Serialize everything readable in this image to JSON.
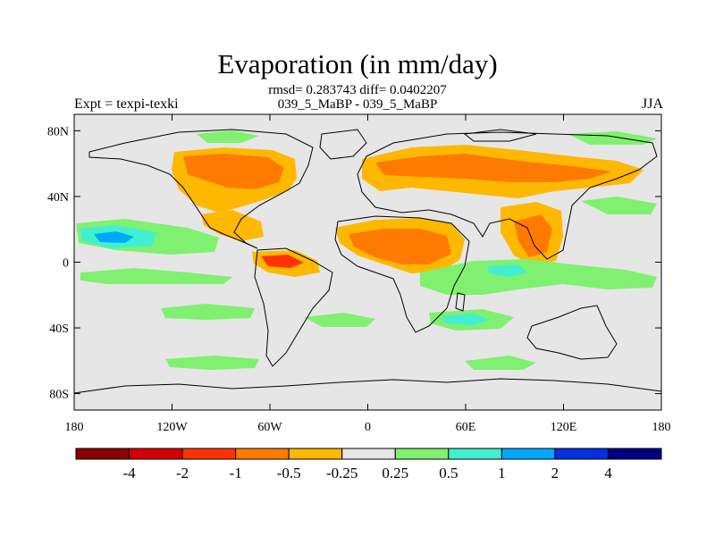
{
  "title": "Evaporation (in mm/day)",
  "subtitle_line1": "rmsd= 0.283743 diff= 0.0402207",
  "subtitle_line2": "039_5_MaBP - 039_5_MaBP",
  "left_label": "Expt = texpi-texki",
  "right_label": "JJA",
  "map": {
    "lon_range": [
      -180,
      180
    ],
    "lat_range": [
      -90,
      90
    ],
    "lon_ticks": [
      "180",
      "120W",
      "60W",
      "0",
      "60E",
      "120E",
      "180"
    ],
    "lat_ticks": [
      "80N",
      "40N",
      "0",
      "40S",
      "80S"
    ],
    "background_color": "#e6e6e6"
  },
  "colorbar": {
    "labels": [
      "-4",
      "-2",
      "-1",
      "-0.5",
      "-0.25",
      "0.25",
      "0.5",
      "1",
      "2",
      "4"
    ],
    "colors": [
      "#8b0000",
      "#d40000",
      "#ff3300",
      "#ff7a00",
      "#ffb800",
      "#e6e6e6",
      "#80f070",
      "#40f0d0",
      "#00a8ff",
      "#0030e0",
      "#000080"
    ]
  }
}
